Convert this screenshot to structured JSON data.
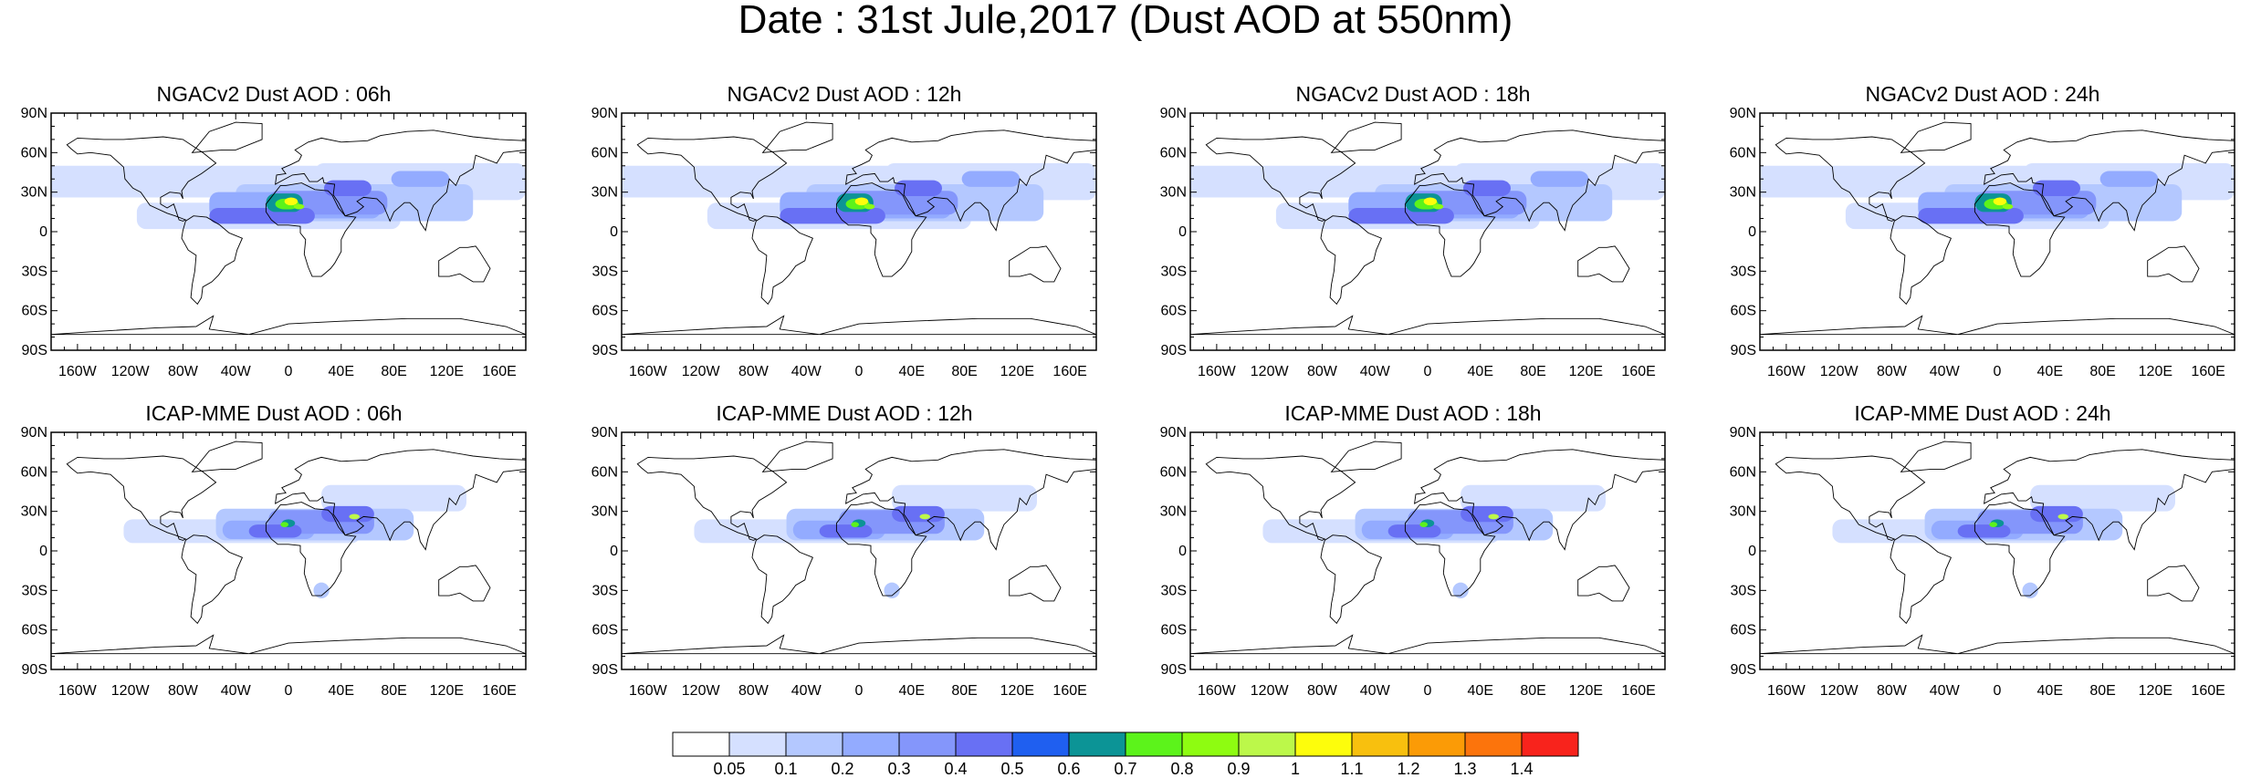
{
  "title": "Date : 31st Jule,2017 (Dust AOD at 550nm)",
  "panels": [
    {
      "title": "NGACv2 Dust AOD : 06h",
      "model": "ngac"
    },
    {
      "title": "NGACv2 Dust AOD : 12h",
      "model": "ngac"
    },
    {
      "title": "NGACv2 Dust AOD : 18h",
      "model": "ngac"
    },
    {
      "title": "NGACv2 Dust AOD : 24h",
      "model": "ngac"
    },
    {
      "title": "ICAP-MME Dust AOD : 06h",
      "model": "icap"
    },
    {
      "title": "ICAP-MME Dust AOD : 12h",
      "model": "icap"
    },
    {
      "title": "ICAP-MME Dust AOD : 18h",
      "model": "icap"
    },
    {
      "title": "ICAP-MME Dust AOD : 24h",
      "model": "icap"
    }
  ],
  "lat_labels": [
    "90N",
    "60N",
    "30N",
    "0",
    "30S",
    "60S",
    "90S"
  ],
  "lat_values": [
    90,
    60,
    30,
    0,
    -30,
    -60,
    -90
  ],
  "lon_labels": [
    "160W",
    "120W",
    "80W",
    "40W",
    "0",
    "40E",
    "80E",
    "120E",
    "160E"
  ],
  "lon_values": [
    -160,
    -120,
    -80,
    -40,
    0,
    40,
    80,
    120,
    160
  ],
  "colorbar": {
    "colors": [
      "#ffffff",
      "#d5e0ff",
      "#b4c8ff",
      "#93abff",
      "#8496fb",
      "#6870f4",
      "#1f5ff0",
      "#0c9496",
      "#5cf31b",
      "#8efc11",
      "#bcf84a",
      "#fdfd0c",
      "#f8c00e",
      "#fb9b06",
      "#fc740c",
      "#f8231c"
    ],
    "labels": [
      "0.05",
      "0.1",
      "0.2",
      "0.3",
      "0.4",
      "0.5",
      "0.6",
      "0.7",
      "0.8",
      "0.9",
      "1",
      "1.1",
      "1.2",
      "1.3",
      "1.4"
    ]
  }
}
